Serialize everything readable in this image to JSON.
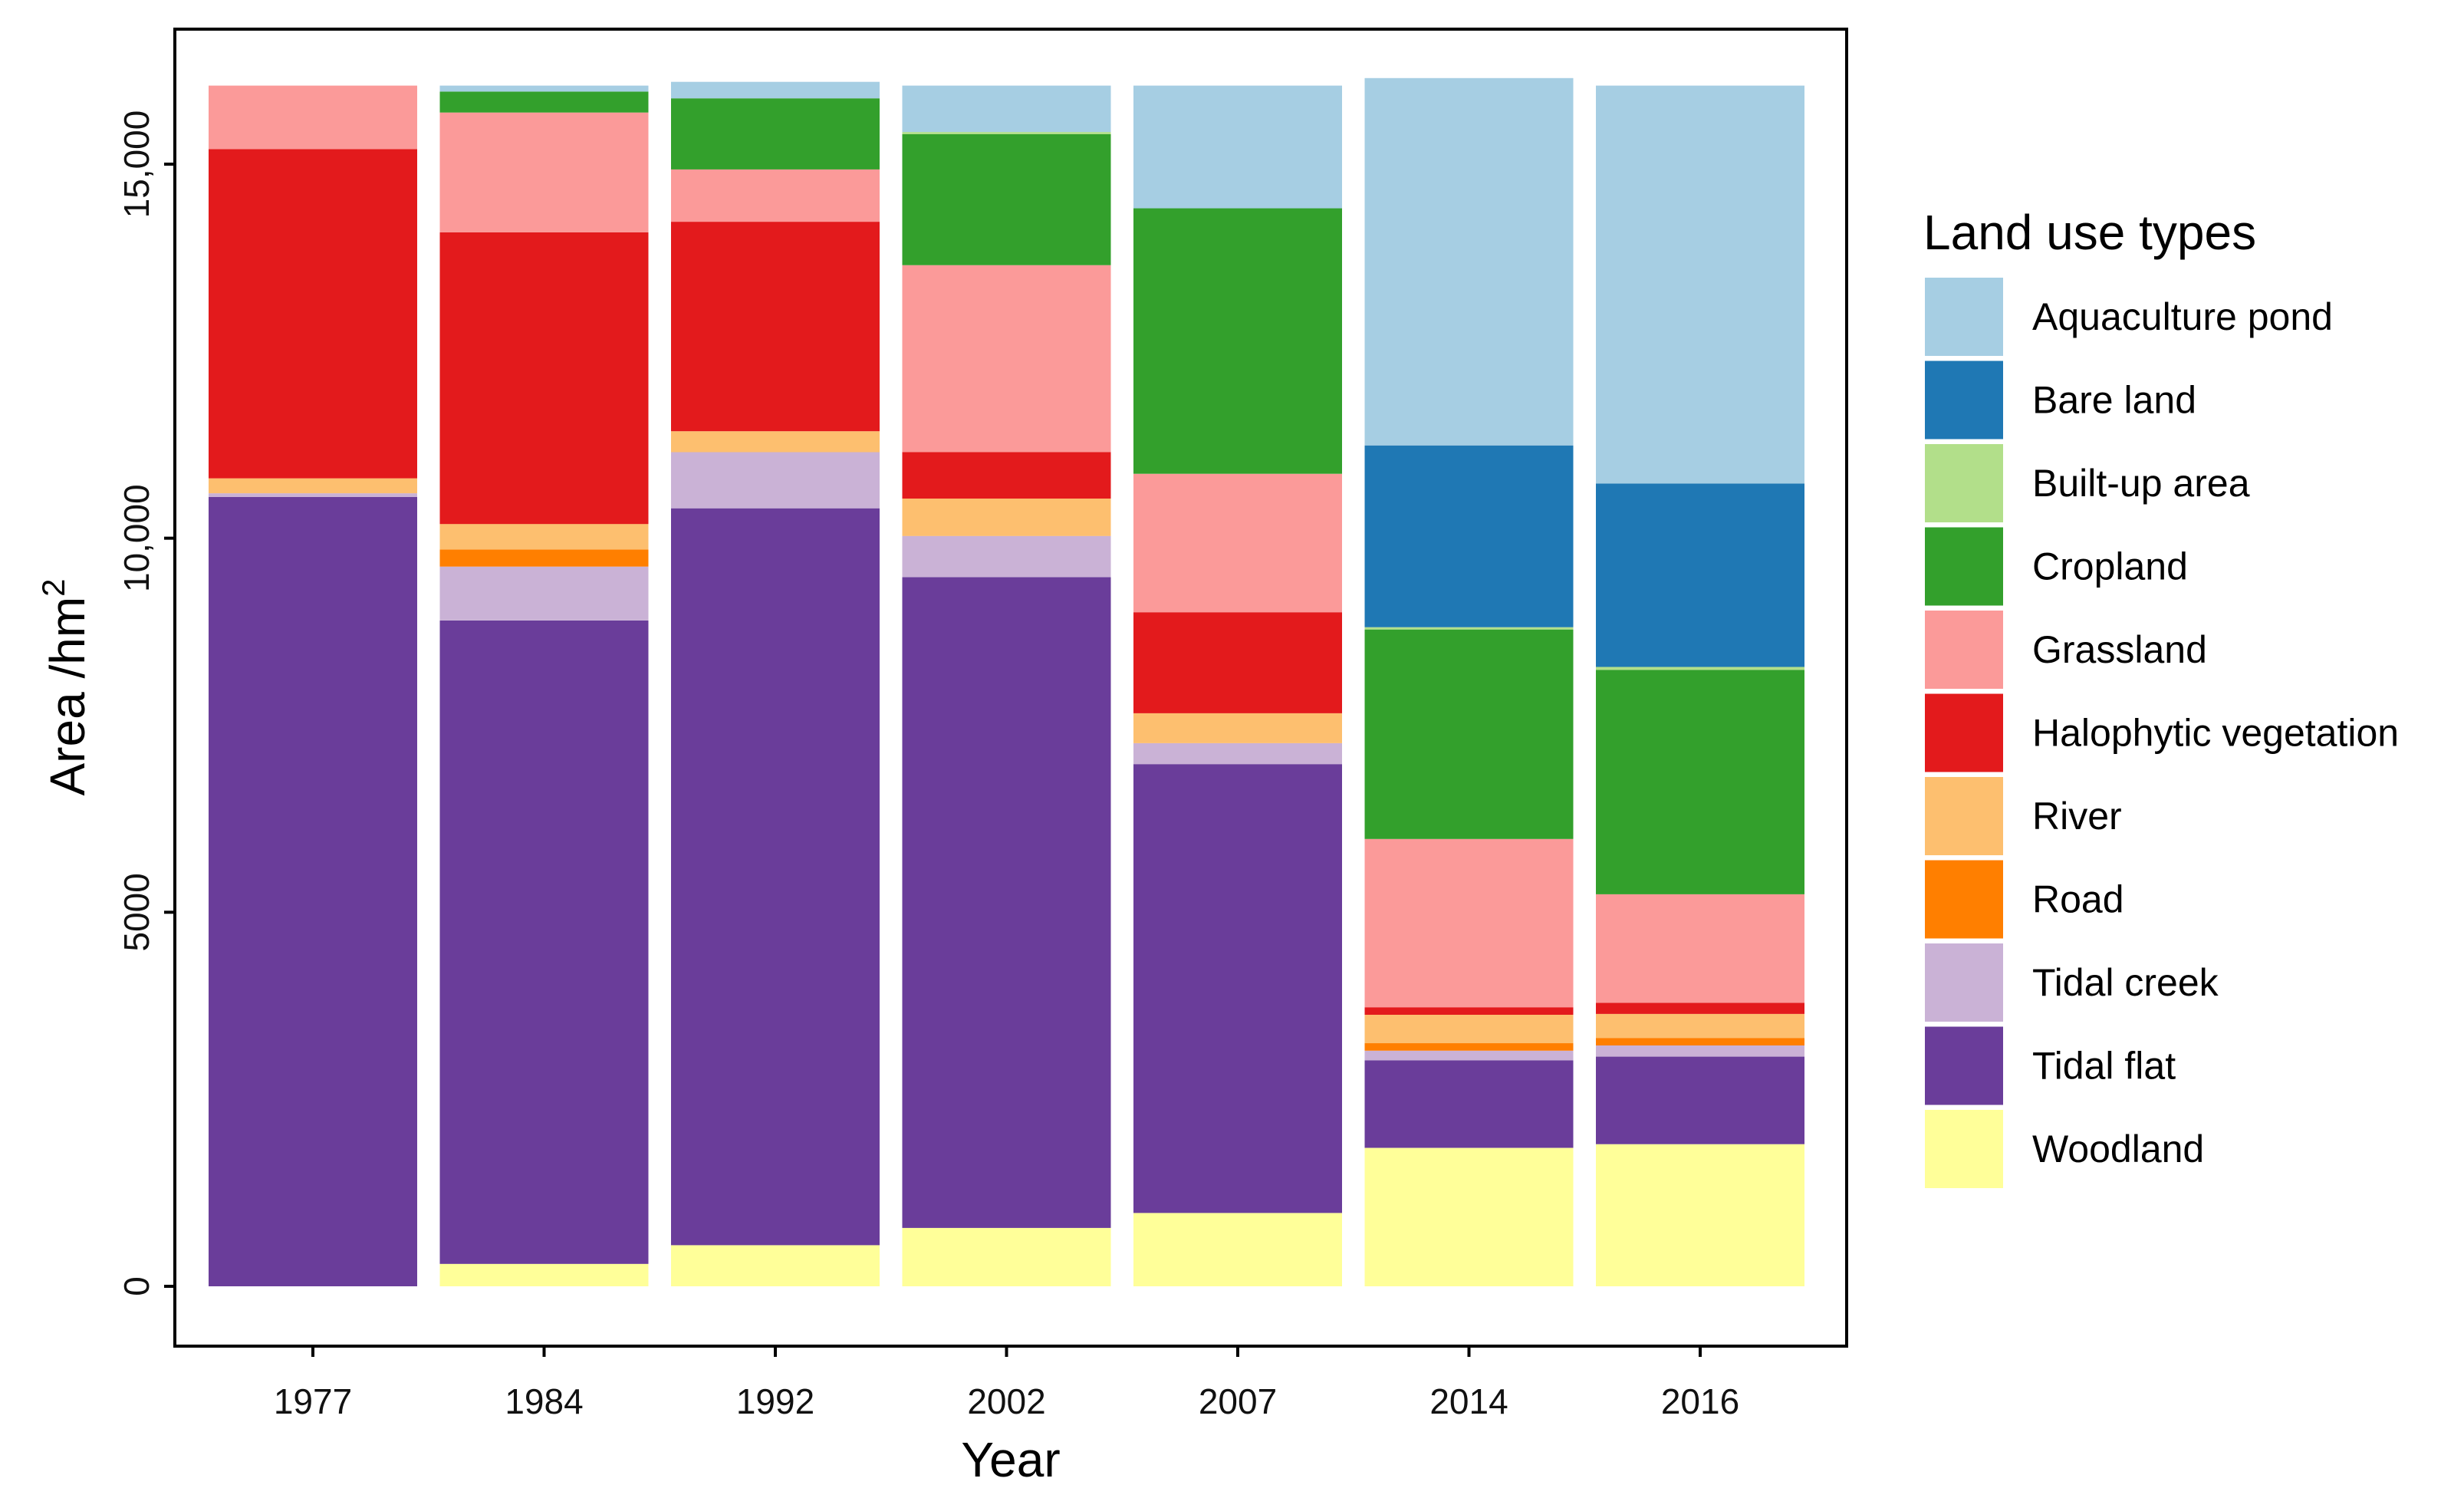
{
  "chart_data": {
    "type": "bar",
    "stacked": true,
    "title": "",
    "xlabel": "Year",
    "ylabel_main": "Area /hm",
    "ylabel_sup": "2",
    "ylim": [
      -1600,
      16800
    ],
    "yticks": [
      0,
      5000,
      10000,
      15000
    ],
    "ytick_labels": [
      "0",
      "5000",
      "10,000",
      "15,000"
    ],
    "categories": [
      "1977",
      "1984",
      "1992",
      "2002",
      "2007",
      "2014",
      "2016"
    ],
    "legend": {
      "title": "Land use types",
      "position": "right"
    },
    "series": [
      {
        "name": "Woodland",
        "color": "#FFFF99",
        "values": [
          0,
          300,
          550,
          780,
          980,
          1850,
          1900
        ]
      },
      {
        "name": "Tidal flat",
        "color": "#6A3D9A",
        "values": [
          10550,
          8600,
          9850,
          8700,
          6000,
          1170,
          1170
        ]
      },
      {
        "name": "Tidal creek",
        "color": "#CAB2D6",
        "values": [
          50,
          720,
          750,
          550,
          280,
          130,
          150
        ]
      },
      {
        "name": "Road",
        "color": "#FF7F00",
        "values": [
          0,
          230,
          0,
          0,
          0,
          100,
          100
        ]
      },
      {
        "name": "River",
        "color": "#FDBF6F",
        "values": [
          200,
          340,
          280,
          500,
          400,
          380,
          320
        ]
      },
      {
        "name": "Halophytic vegetation",
        "color": "#E31A1C",
        "values": [
          4400,
          3900,
          2800,
          620,
          1350,
          100,
          150
        ]
      },
      {
        "name": "Grassland",
        "color": "#FB9A99",
        "values": [
          850,
          1600,
          700,
          2500,
          1850,
          2250,
          1450
        ]
      },
      {
        "name": "Cropland",
        "color": "#33A02C",
        "values": [
          0,
          280,
          950,
          1750,
          3550,
          2800,
          3000
        ]
      },
      {
        "name": "Built-up area",
        "color": "#B2DF8A",
        "values": [
          0,
          0,
          0,
          30,
          0,
          30,
          40
        ]
      },
      {
        "name": "Bare land",
        "color": "#1F78B4",
        "values": [
          0,
          0,
          0,
          0,
          0,
          2430,
          2450
        ]
      },
      {
        "name": "Aquaculture pond",
        "color": "#A6CEE3",
        "values": [
          0,
          80,
          220,
          620,
          1640,
          4910,
          5320
        ]
      }
    ],
    "legend_order": [
      "Aquaculture pond",
      "Bare land",
      "Built-up area",
      "Cropland",
      "Grassland",
      "Halophytic vegetation",
      "River",
      "Road",
      "Tidal creek",
      "Tidal flat",
      "Woodland"
    ]
  }
}
